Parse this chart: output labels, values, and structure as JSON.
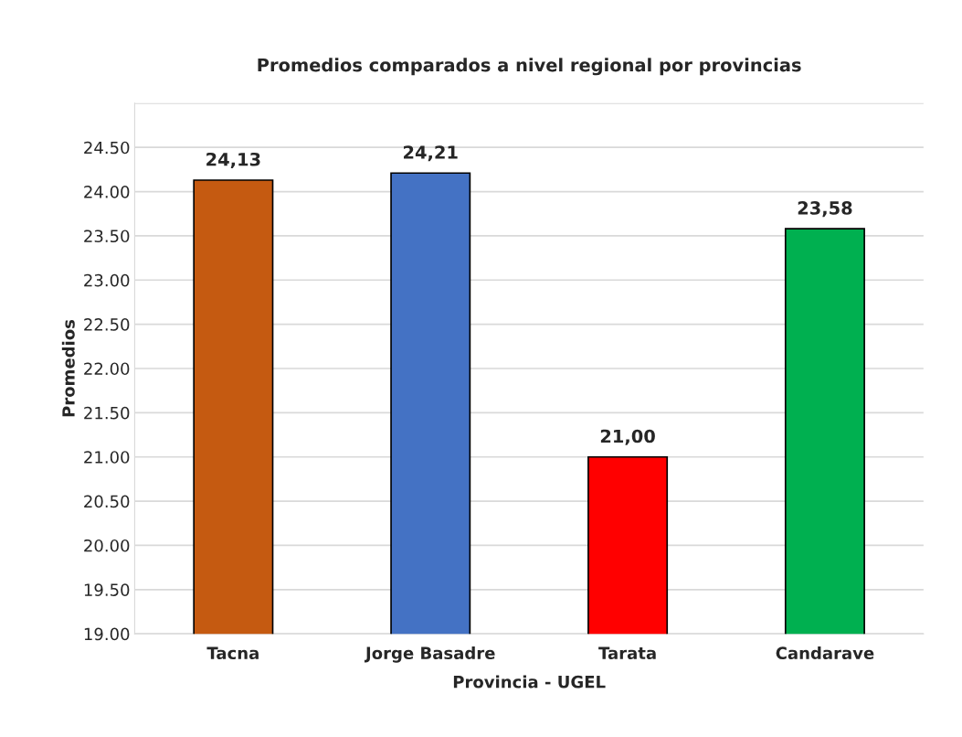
{
  "chart_data": {
    "type": "bar",
    "title": "Promedios comparados a nivel regional por provincias",
    "xlabel": "Provincia - UGEL",
    "ylabel": "Promedios",
    "categories": [
      "Tacna",
      "Jorge Basadre",
      "Tarata",
      "Candarave"
    ],
    "values": [
      24.13,
      24.21,
      21.0,
      23.58
    ],
    "colors": [
      "#c55a11",
      "#4472c4",
      "#ff0000",
      "#00b050"
    ],
    "value_labels": [
      "24,13",
      "24,21",
      "21,00",
      "23,58"
    ],
    "ylim": [
      19,
      25
    ],
    "yticks": [
      {
        "value": 19,
        "label": "19.00"
      },
      {
        "value": 19.5,
        "label": "19.50"
      },
      {
        "value": 20,
        "label": "20.00"
      },
      {
        "value": 20.5,
        "label": "20.50"
      },
      {
        "value": 21,
        "label": "21.00"
      },
      {
        "value": 21.5,
        "label": "21.50"
      },
      {
        "value": 22,
        "label": "22.00"
      },
      {
        "value": 22.5,
        "label": "22.50"
      },
      {
        "value": 23,
        "label": "23.00"
      },
      {
        "value": 23.5,
        "label": "23.50"
      },
      {
        "value": 24,
        "label": "24.00"
      },
      {
        "value": 24.5,
        "label": "24.50"
      },
      {
        "value": 25,
        "label": null
      }
    ],
    "grid": "y"
  }
}
